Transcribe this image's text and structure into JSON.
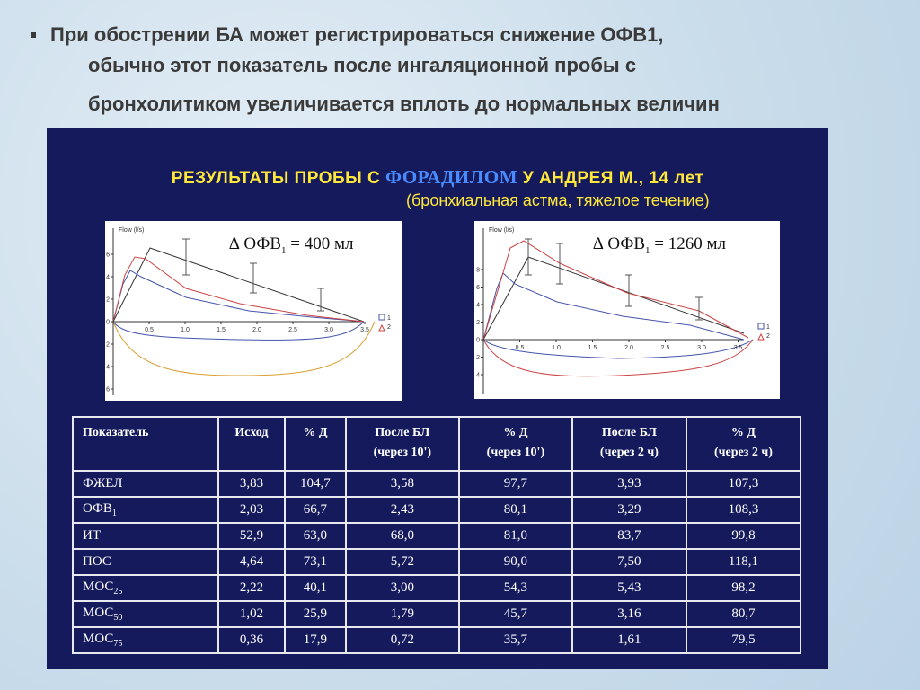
{
  "header": {
    "lines": [
      "При обострении БА может регистрироваться снижение ОФВ1,",
      "обычно этот показатель после ингаляционной пробы с",
      "бронхолитиком увеличивается вплоть до нормальных величин"
    ]
  },
  "panel": {
    "title_start": "РЕЗУЛЬТАТЫ ПРОБЫ С",
    "title_drug": "ФОРАДИЛОМ",
    "title_end": "У АНДРЕЯ М., 14 лет",
    "subtitle": "(бронхиальная астма, тяжелое течение)"
  },
  "plots": [
    {
      "axis_label": "Flow (l/s)",
      "delta_prefix": "∆ ОФВ",
      "delta_sub": "1",
      "delta_suffix": "= 400 мл",
      "legend": [
        "1",
        "2"
      ],
      "xticks": [
        0.5,
        {
          "value": 1,
          "label": "1.0"
        },
        1.5,
        {
          "value": 2,
          "label": "2.0"
        },
        2.5,
        {
          "value": 3,
          "label": "3.0"
        },
        3.5
      ],
      "yticks": [
        6,
        4,
        2,
        0,
        {
          "value": -2,
          "label": "2"
        },
        {
          "value": -4,
          "label": "4"
        },
        {
          "value": -6,
          "label": "6"
        }
      ]
    },
    {
      "axis_label": "Flow (l/s)",
      "delta_prefix": "∆ ОФВ",
      "delta_sub": "1",
      "delta_suffix": "= 1260 мл",
      "legend": [
        "1",
        "2"
      ],
      "xticks": [
        0.5,
        {
          "value": 1,
          "label": "1.0"
        },
        1.5,
        {
          "value": 2,
          "label": "2.0"
        },
        2.5,
        {
          "value": 3,
          "label": "3.0"
        },
        3.5
      ],
      "yticks": [
        8,
        6,
        4,
        2,
        0,
        {
          "value": -2,
          "label": "2"
        },
        {
          "value": -4,
          "label": "4"
        }
      ]
    }
  ],
  "table": {
    "header": [
      [
        "Показатель"
      ],
      [
        "Исход"
      ],
      [
        "% Д"
      ],
      [
        "После БЛ",
        "(через 10')"
      ],
      [
        "% Д",
        "(через 10')"
      ],
      [
        "После БЛ",
        "(через 2 ч)"
      ],
      [
        "% Д",
        "(через 2 ч)"
      ]
    ],
    "rows": [
      [
        {
          "text": "ФЖЕЛ"
        },
        "3,83",
        "104,7",
        "3,58",
        "97,7",
        "3,93",
        "107,3"
      ],
      [
        {
          "text": "ОФВ",
          "sub": "1"
        },
        "2,03",
        "66,7",
        "2,43",
        "80,1",
        "3,29",
        "108,3"
      ],
      [
        {
          "text": "ИТ"
        },
        "52,9",
        "63,0",
        "68,0",
        "81,0",
        "83,7",
        "99,8"
      ],
      [
        {
          "text": "ПОС"
        },
        "4,64",
        "73,1",
        "5,72",
        "90,0",
        "7,50",
        "118,1"
      ],
      [
        {
          "text": "МОС",
          "sub": "25"
        },
        "2,22",
        "40,1",
        "3,00",
        "54,3",
        "5,43",
        "98,2"
      ],
      [
        {
          "text": "МОС",
          "sub": "50"
        },
        "1,02",
        "25,9",
        "1,79",
        "45,7",
        "3,16",
        "80,7"
      ],
      [
        {
          "text": "МОС",
          "sub": "75"
        },
        "0,36",
        "17,9",
        "0,72",
        "35,7",
        "1,61",
        "79,5"
      ]
    ]
  }
}
